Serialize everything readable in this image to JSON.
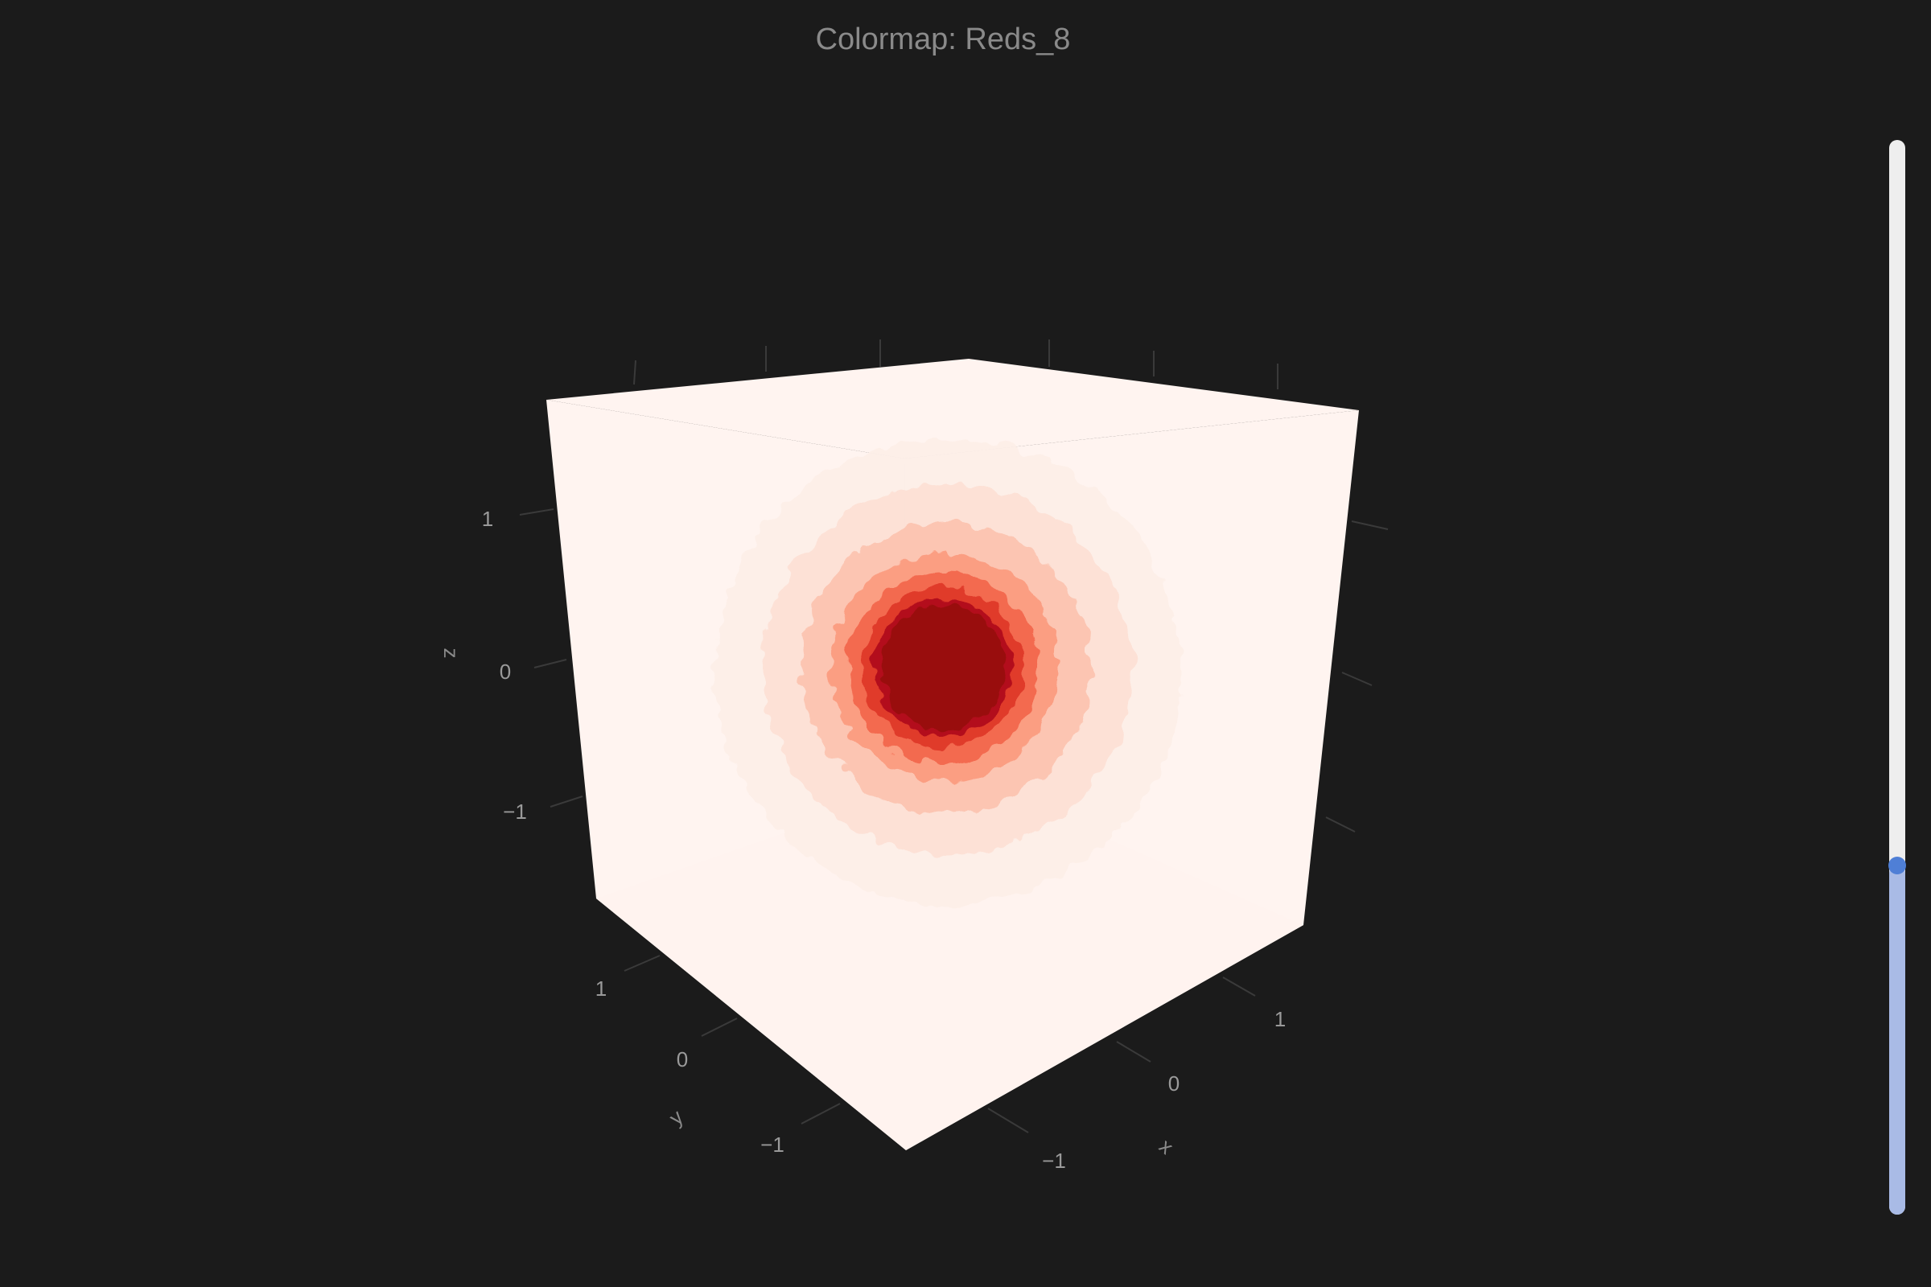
{
  "title": "Colormap: Reds_8",
  "colormap": {
    "name": "Reds_8",
    "colors": [
      "#fff5f0",
      "#fee0d2",
      "#fcbba1",
      "#fc9272",
      "#fb6a4a",
      "#ef3b2c",
      "#cb181d",
      "#99000d"
    ]
  },
  "axes": {
    "x": {
      "title": "x",
      "ticks": [
        "−1",
        "0",
        "1"
      ]
    },
    "y": {
      "title": "y",
      "ticks": [
        "−1",
        "0",
        "1"
      ]
    },
    "z": {
      "title": "z",
      "ticks": [
        "−1",
        "0",
        "1"
      ]
    }
  },
  "slider": {
    "orientation": "vertical",
    "value_fraction": 0.325,
    "track_color": "#eeeeee",
    "fill_color": "#a9bbe6",
    "thumb_color": "#4f7fd6"
  },
  "colors": {
    "background": "#1b1b1b",
    "text": "#8a8a8a"
  }
}
